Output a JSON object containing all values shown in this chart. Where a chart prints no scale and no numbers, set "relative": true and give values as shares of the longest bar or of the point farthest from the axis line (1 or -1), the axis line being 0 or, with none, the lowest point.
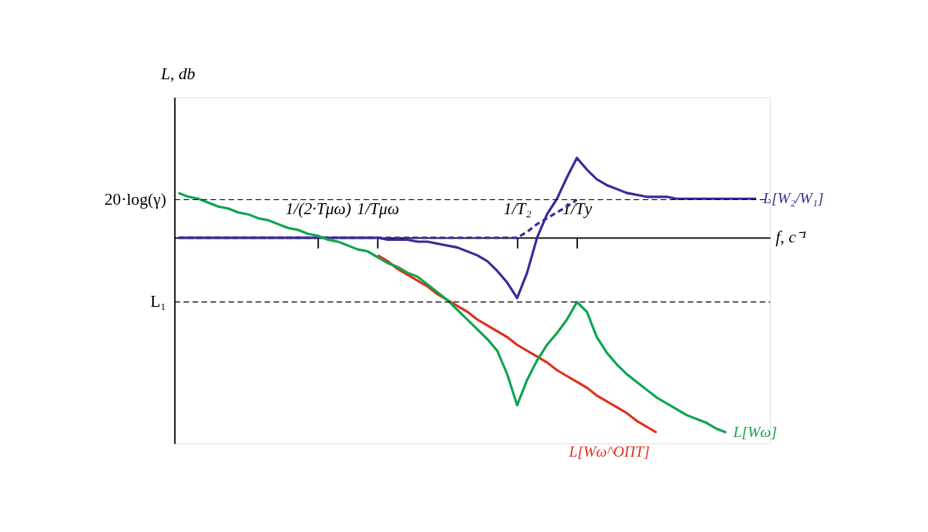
{
  "chart_data": {
    "type": "line",
    "relative": true,
    "ylabel": "L, db",
    "xlabel": "f, с⁻¹",
    "categories": [
      null,
      null,
      null,
      null,
      null,
      null,
      null,
      null,
      null,
      null,
      null,
      null,
      null,
      null,
      "1/(2·Tμω)",
      null,
      null,
      null,
      null,
      null,
      "1/Tμω",
      null,
      null,
      null,
      null,
      null,
      null,
      null,
      null,
      null,
      null,
      null,
      null,
      null,
      "1/T₂",
      null,
      null,
      null,
      null,
      null,
      "1/Tу",
      null,
      null,
      null,
      null,
      null,
      null,
      null,
      null,
      null,
      null,
      null,
      null,
      null,
      null,
      null,
      null,
      null,
      null
    ],
    "series": [
      {
        "name": "L[W₂/W₁]",
        "color": "#3b2a98",
        "values": [
          0,
          0,
          0,
          0,
          0,
          0,
          0,
          0,
          0,
          0,
          0,
          0,
          0,
          0,
          0,
          0,
          0,
          0,
          0,
          0,
          0,
          -0.01,
          -0.01,
          -0.01,
          -0.02,
          -0.02,
          -0.03,
          -0.04,
          -0.05,
          -0.07,
          -0.09,
          -0.12,
          -0.17,
          -0.23,
          -0.31,
          -0.18,
          0.0,
          0.12,
          0.2,
          0.31,
          0.41,
          0.35,
          0.3,
          0.27,
          0.25,
          0.23,
          0.22,
          0.21,
          0.21,
          0.21,
          0.2,
          0.2,
          0.2,
          0.2,
          0.2,
          0.2,
          0.2,
          0.2,
          0.2
        ]
      },
      {
        "color": "#3b2a98",
        "line_style": "dashed",
        "values": [
          0,
          0,
          0,
          0,
          0,
          0,
          0,
          0,
          0,
          0,
          0,
          0,
          0,
          0,
          0,
          0,
          0,
          0,
          0,
          0,
          0,
          0,
          0,
          0,
          0,
          0,
          0,
          0,
          0,
          0,
          0,
          0,
          0,
          0,
          0,
          0.03,
          0.07,
          0.1,
          0.13,
          0.16,
          0.195,
          null,
          null,
          null,
          null,
          null,
          null,
          null,
          null,
          null,
          null,
          null,
          null,
          null,
          null,
          null,
          null,
          null,
          null
        ]
      },
      {
        "name": "L[Wω^ОПТ]",
        "color": "#e0301e",
        "values": [
          null,
          null,
          null,
          null,
          null,
          null,
          null,
          null,
          null,
          null,
          null,
          null,
          null,
          null,
          null,
          null,
          null,
          null,
          null,
          null,
          -0.09,
          -0.12,
          -0.16,
          -0.19,
          -0.22,
          -0.25,
          -0.29,
          -0.32,
          -0.35,
          -0.38,
          -0.42,
          -0.45,
          -0.48,
          -0.51,
          -0.55,
          -0.58,
          -0.61,
          -0.64,
          -0.68,
          -0.71,
          -0.74,
          -0.77,
          -0.81,
          -0.84,
          -0.87,
          -0.9,
          -0.94,
          -0.97,
          -1.0,
          null,
          null,
          null,
          null,
          null,
          null,
          null,
          null,
          null,
          null
        ]
      },
      {
        "name": "L[Wω]",
        "color": "#0ea44e",
        "values": [
          0.23,
          0.21,
          0.2,
          0.18,
          0.16,
          0.15,
          0.13,
          0.12,
          0.1,
          0.09,
          0.07,
          0.05,
          0.04,
          0.02,
          0.01,
          -0.01,
          -0.02,
          -0.04,
          -0.06,
          -0.07,
          -0.1,
          -0.13,
          -0.15,
          -0.18,
          -0.2,
          -0.24,
          -0.28,
          -0.32,
          -0.37,
          -0.42,
          -0.47,
          -0.52,
          -0.58,
          -0.7,
          -0.86,
          -0.73,
          -0.63,
          -0.55,
          -0.49,
          -0.42,
          -0.33,
          -0.38,
          -0.51,
          -0.59,
          -0.65,
          -0.7,
          -0.74,
          -0.78,
          -0.82,
          -0.85,
          -0.88,
          -0.91,
          -0.93,
          -0.95,
          -0.98,
          -1.0,
          null,
          null,
          null
        ]
      }
    ],
    "ref_lines": [
      {
        "axis": "y",
        "value": 0.195,
        "label": "20·log(γ)",
        "color": "#000000",
        "line_style": "dashed"
      },
      {
        "axis": "y",
        "value": -0.33,
        "label": "L₁",
        "color": "#000000",
        "line_style": "dashed"
      }
    ]
  }
}
